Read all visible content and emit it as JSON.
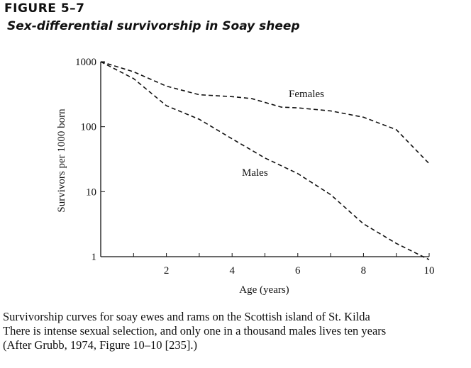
{
  "figure": {
    "label": "FIGURE 5–7",
    "title": "Sex-differential survivorship in Soay sheep"
  },
  "caption": {
    "lines": [
      "Survivorship curves for soay ewes and rams on the Scottish island of St. Kilda",
      "There is intense sexual selection, and only one in a thousand males lives ten years",
      "(After Grubb, 1974, Figure 10–10 [235].)"
    ]
  },
  "chart_data": {
    "type": "line",
    "title": "Sex-differential survivorship in Soay sheep",
    "xlabel": "Age (years)",
    "ylabel": "Survivors per 1000 born",
    "xlim": [
      0,
      10
    ],
    "ylim": [
      1,
      1000
    ],
    "yscale": "log",
    "x_ticks": [
      2,
      4,
      6,
      8,
      10
    ],
    "y_ticks": [
      1,
      10,
      100,
      1000
    ],
    "y_tick_labels": [
      "1",
      "10",
      "100",
      "1000"
    ],
    "grid": false,
    "legend": "none",
    "line_style": "dashed",
    "series": [
      {
        "name": "Females",
        "x": [
          0,
          1,
          2,
          3,
          4,
          4.6,
          5.5,
          6,
          7,
          8,
          9,
          10
        ],
        "y": [
          1000,
          700,
          420,
          310,
          290,
          270,
          200,
          195,
          175,
          140,
          90,
          27
        ]
      },
      {
        "name": "Males",
        "x": [
          0,
          1,
          2,
          3,
          4,
          5,
          6,
          7,
          8,
          9,
          10
        ],
        "y": [
          1000,
          550,
          210,
          130,
          65,
          33,
          19,
          9,
          3.2,
          1.6,
          0.9
        ]
      }
    ]
  }
}
